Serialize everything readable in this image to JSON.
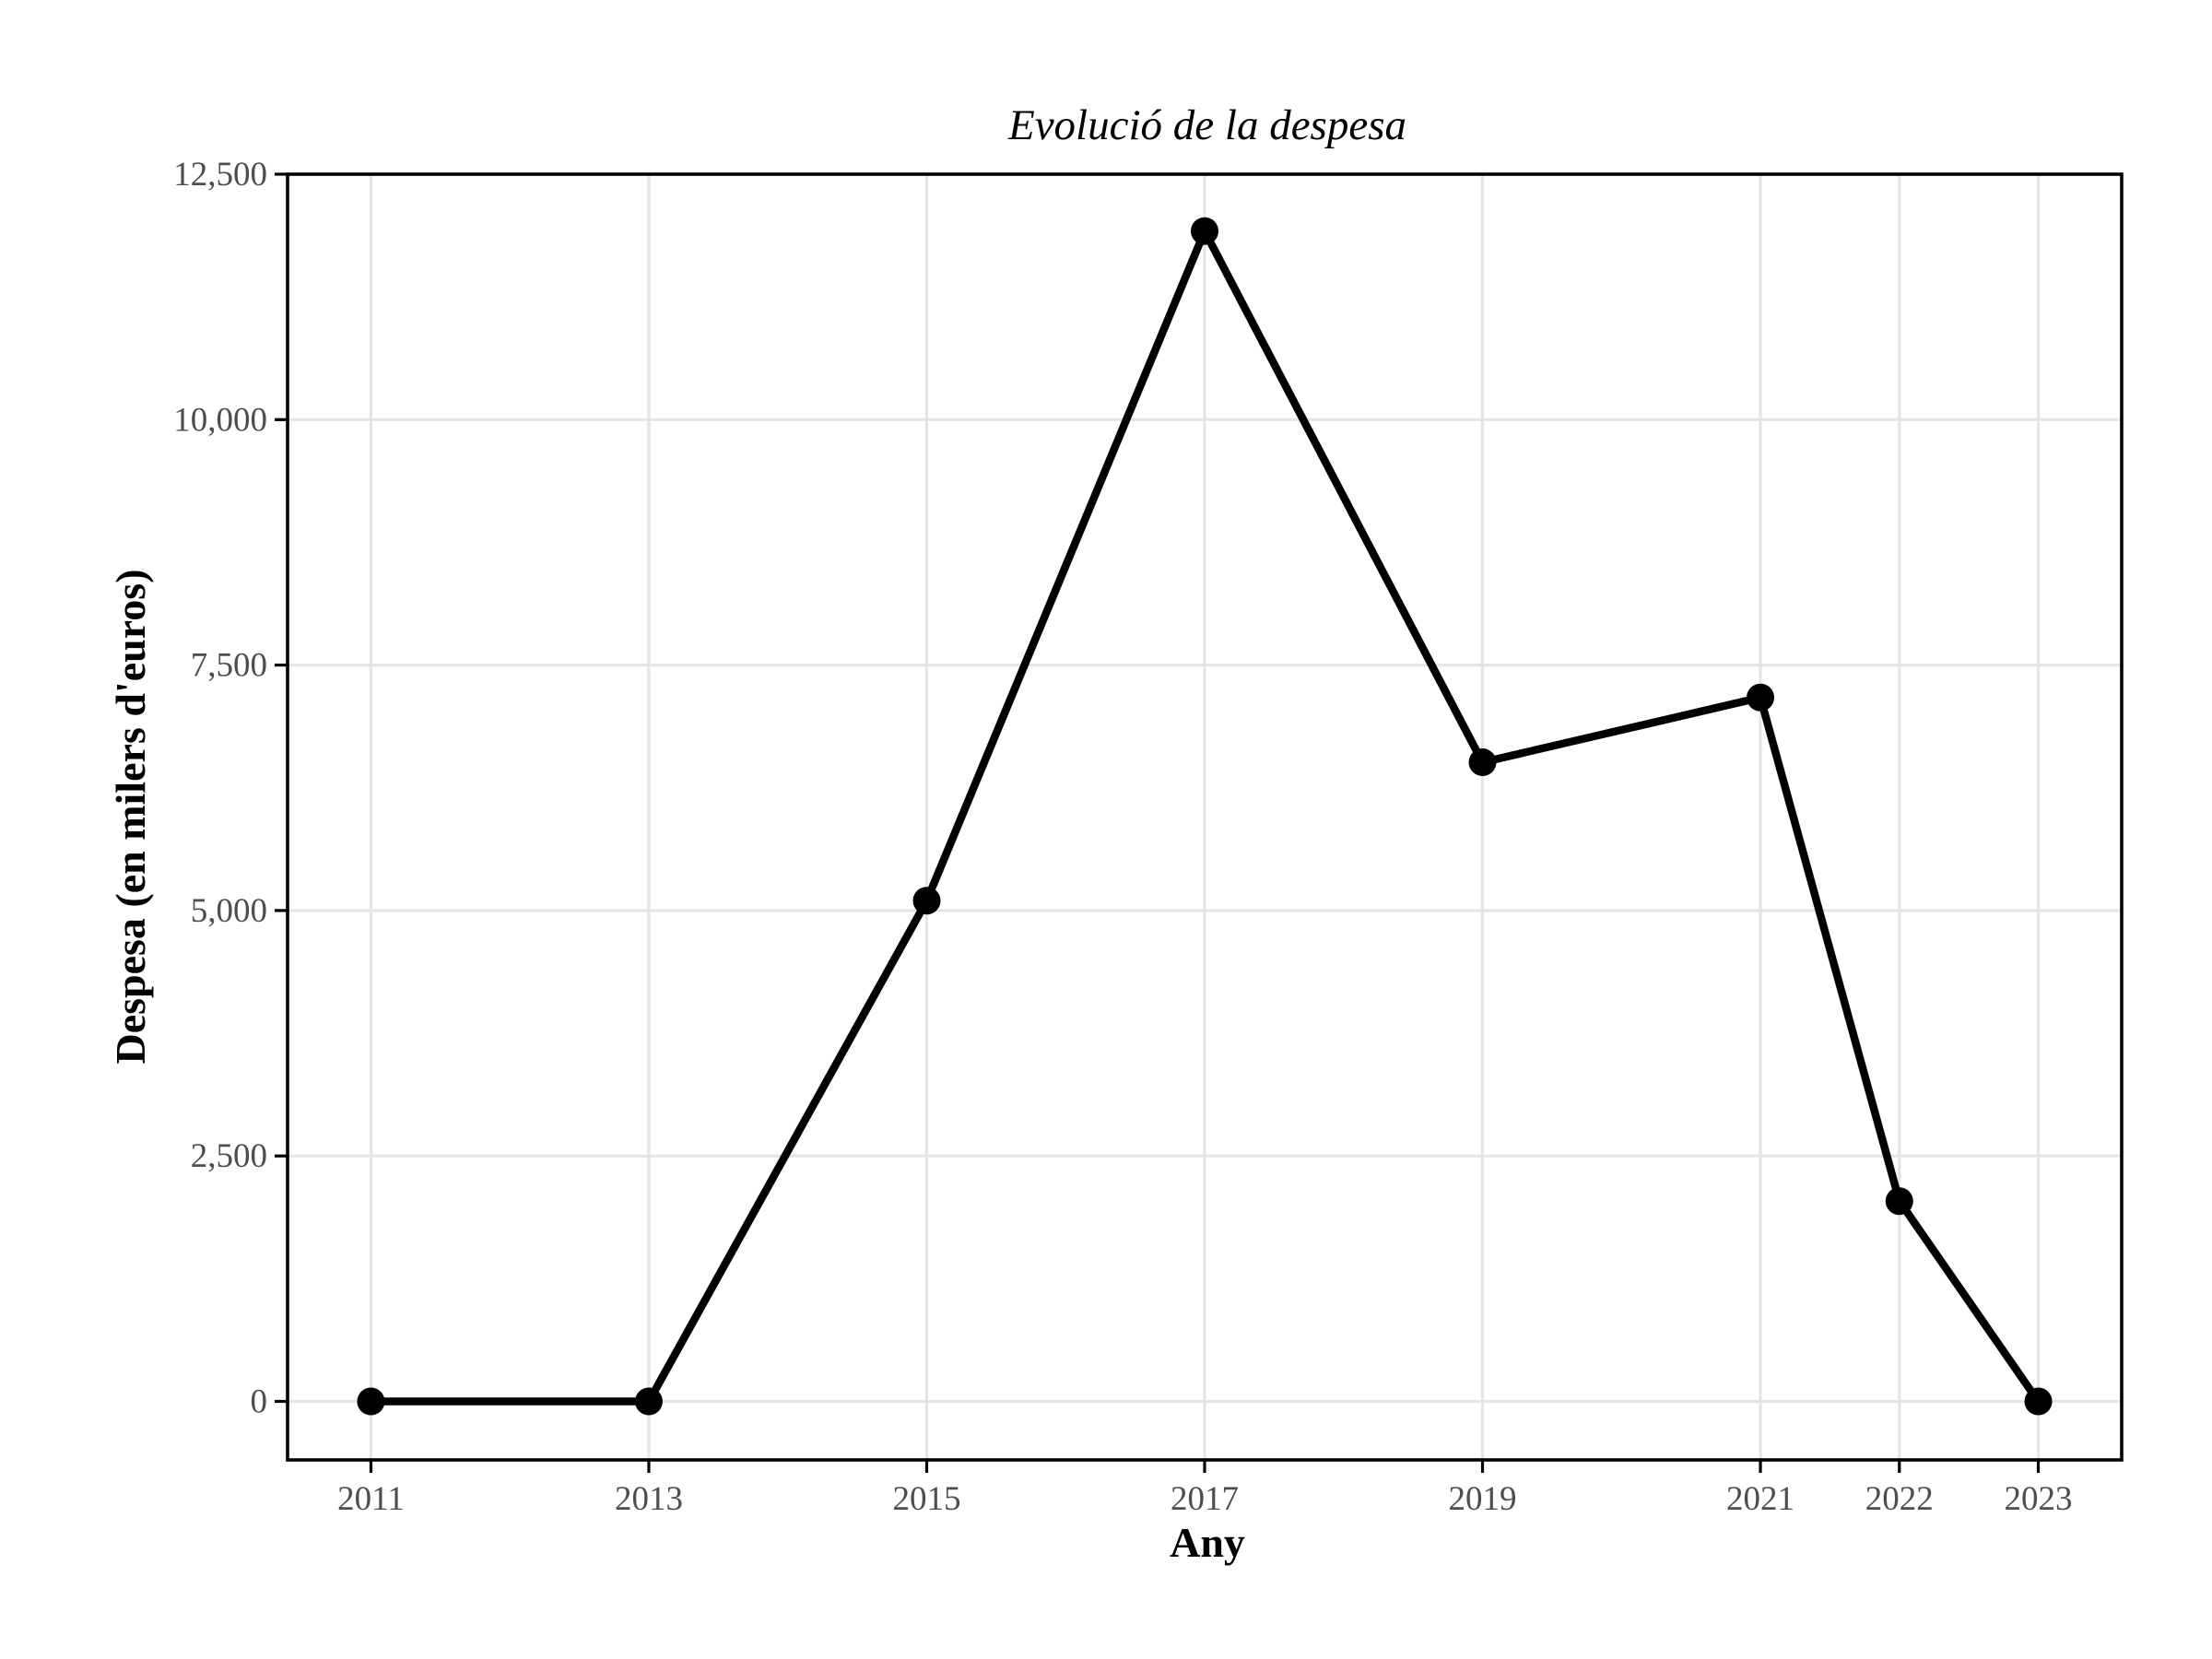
{
  "chart_data": {
    "type": "line",
    "title": "Evolució de la despesa",
    "xlabel": "Any",
    "ylabel": "Despesa (en milers d'euros)",
    "x": [
      2011,
      2013,
      2015,
      2017,
      2019,
      2021,
      2022,
      2023
    ],
    "x_tick_labels": [
      "2011",
      "2013",
      "2015",
      "2017",
      "2019",
      "2021",
      "2022",
      "2023"
    ],
    "series": [
      {
        "values": [
          0,
          0,
          5100,
          11920,
          6510,
          7170,
          2040,
          0
        ]
      }
    ],
    "y_ticks": [
      0,
      2500,
      5000,
      7500,
      10000,
      12500
    ],
    "y_tick_labels": [
      "0",
      "2,500",
      "5,000",
      "7,500",
      "10,000",
      "12,500"
    ],
    "xlim": [
      2010.4,
      2023.6
    ],
    "ylim": [
      -596,
      12500
    ],
    "grid": true,
    "line_color": "#000000",
    "grid_color": "#e5e5e5"
  }
}
